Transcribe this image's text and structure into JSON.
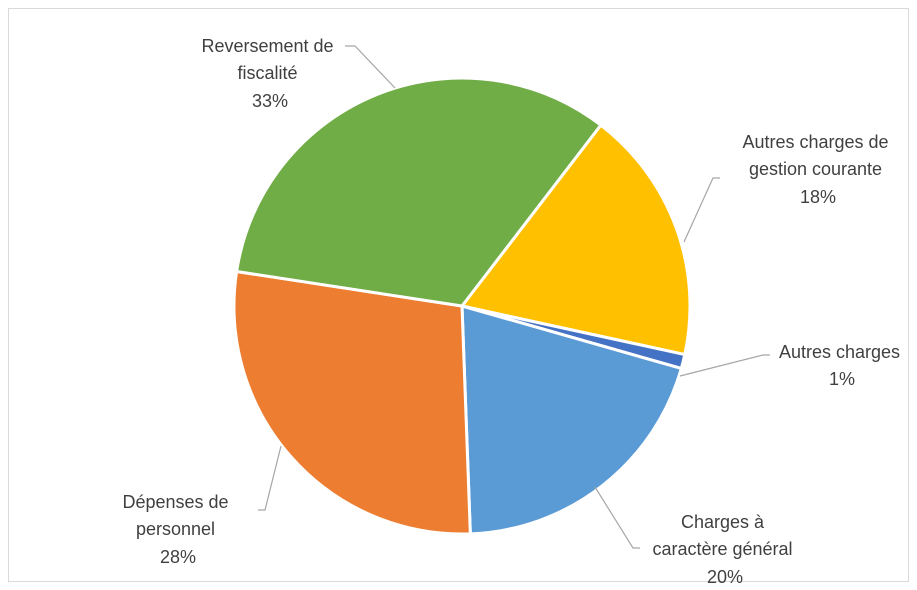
{
  "chart_data": {
    "type": "pie",
    "title": "",
    "slices": [
      {
        "label_lines": [
          "Autres charges de",
          "gestion courante"
        ],
        "value": 18,
        "percent_label": "18%",
        "color": "#FFC000"
      },
      {
        "label_lines": [
          "Autres charges"
        ],
        "value": 1,
        "percent_label": "1%",
        "color": "#4472C4"
      },
      {
        "label_lines": [
          "Charges à",
          "caractère général"
        ],
        "value": 20,
        "percent_label": "20%",
        "color": "#5B9BD5"
      },
      {
        "label_lines": [
          "Dépenses de",
          "personnel"
        ],
        "value": 28,
        "percent_label": "28%",
        "color": "#ED7D31"
      },
      {
        "label_lines": [
          "Reversement de",
          "fiscalité"
        ],
        "value": 33,
        "percent_label": "33%",
        "color": "#70AD47"
      }
    ],
    "legend": "none",
    "data_labels": "outside-with-leader-lines"
  }
}
